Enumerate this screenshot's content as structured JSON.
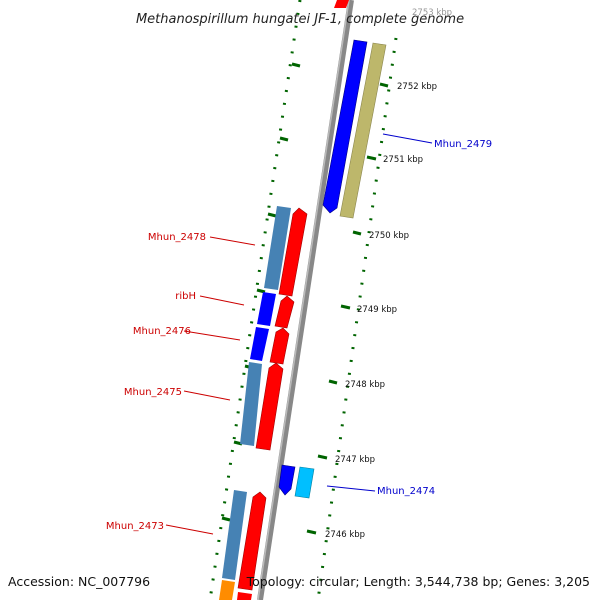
{
  "title": "Methanospirillum hungatei JF-1, complete genome",
  "footer": {
    "accession": "Accession: NC_007796",
    "summary": "Topology: circular; Length: 3,544,738 bp; Genes: 3,205"
  },
  "colors": {
    "forward_gene": "#ff0000",
    "reverse_gene": "#0000ff",
    "cds_blue": "#4682b4",
    "teal_gene": "#00bfff",
    "khaki_gene": "#bdb76b",
    "orange_gene": "#ff8c00",
    "backbone": "#888888",
    "tick_marks": "#006400",
    "label_red": "#cc0000",
    "label_blue": "#0000cc"
  },
  "ticks": [
    {
      "label": "2753 kbp"
    },
    {
      "label": "2752 kbp"
    },
    {
      "label": "2751 kbp"
    },
    {
      "label": "2750 kbp"
    },
    {
      "label": "2749 kbp"
    },
    {
      "label": "2748 kbp"
    },
    {
      "label": "2747 kbp"
    },
    {
      "label": "2746 kbp"
    }
  ],
  "genes": [
    {
      "label": "Mhun_2479",
      "strand": "reverse"
    },
    {
      "label": "Mhun_2478",
      "strand": "forward"
    },
    {
      "label": "ribH",
      "strand": "forward"
    },
    {
      "label": "Mhun_2476",
      "strand": "forward"
    },
    {
      "label": "Mhun_2475",
      "strand": "forward"
    },
    {
      "label": "Mhun_2474",
      "strand": "reverse"
    },
    {
      "label": "Mhun_2473",
      "strand": "forward"
    }
  ]
}
